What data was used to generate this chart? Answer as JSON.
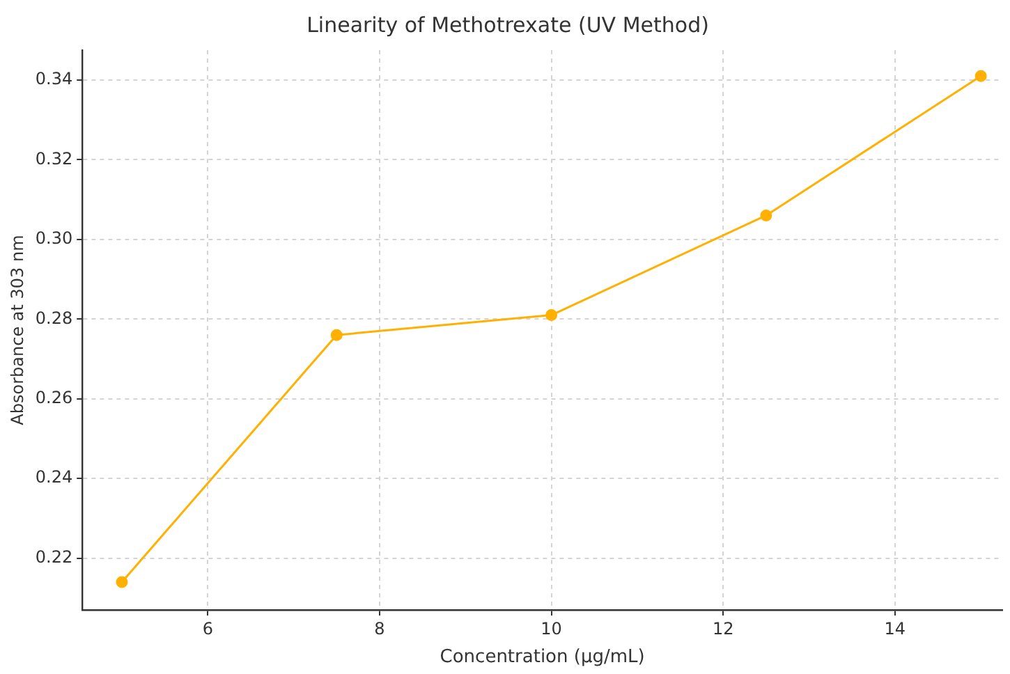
{
  "chart_data": {
    "type": "line",
    "title": "Linearity of Methotrexate (UV Method)",
    "xlabel": "Concentration (µg/mL)",
    "ylabel": "Absorbance at 303 nm",
    "x": [
      5,
      7.5,
      10,
      12.5,
      15
    ],
    "series": [
      {
        "color": "#ffb000",
        "values": [
          0.214,
          0.276,
          0.281,
          0.306,
          0.341
        ]
      }
    ],
    "xlim": [
      4.54,
      15.25
    ],
    "xticks": [
      6,
      8,
      10,
      12,
      14
    ],
    "ylim": [
      0.207,
      0.3475
    ],
    "yticks": [
      {
        "value": 0.22,
        "label": "0.22"
      },
      {
        "value": 0.24,
        "label": "0.24"
      },
      {
        "value": 0.26,
        "label": "0.26"
      },
      {
        "value": 0.28,
        "label": "0.28"
      },
      {
        "value": 0.3,
        "label": "0.30"
      },
      {
        "value": 0.32,
        "label": "0.32"
      },
      {
        "value": 0.34,
        "label": "0.34"
      }
    ],
    "grid": true,
    "marker": "circle",
    "line_style": "solid",
    "legend": false
  }
}
